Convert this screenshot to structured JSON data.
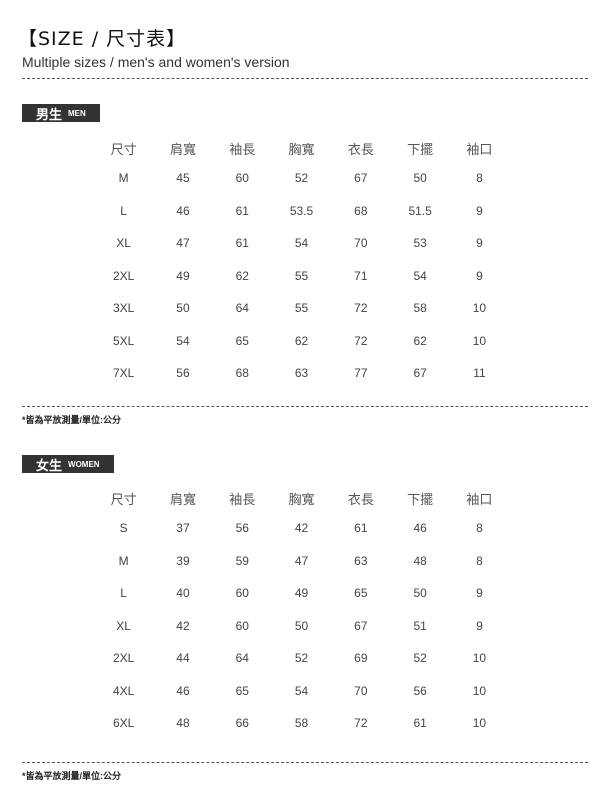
{
  "title": "【SIZE / 尺寸表】",
  "subtitle": "Multiple sizes / men's and women's version",
  "columns": [
    "尺寸",
    "肩寬",
    "袖長",
    "胸寬",
    "衣長",
    "下擺",
    "袖口"
  ],
  "men": {
    "label_zh": "男生",
    "label_en": "MEN",
    "rows": [
      [
        "M",
        "45",
        "60",
        "52",
        "67",
        "50",
        "8"
      ],
      [
        "L",
        "46",
        "61",
        "53.5",
        "68",
        "51.5",
        "9"
      ],
      [
        "XL",
        "47",
        "61",
        "54",
        "70",
        "53",
        "9"
      ],
      [
        "2XL",
        "49",
        "62",
        "55",
        "71",
        "54",
        "9"
      ],
      [
        "3XL",
        "50",
        "64",
        "55",
        "72",
        "58",
        "10"
      ],
      [
        "5XL",
        "54",
        "65",
        "62",
        "72",
        "62",
        "10"
      ],
      [
        "7XL",
        "56",
        "68",
        "63",
        "77",
        "67",
        "11"
      ]
    ],
    "note": "*皆為平放測量/單位:公分"
  },
  "women": {
    "label_zh": "女生",
    "label_en": "WOMEN",
    "rows": [
      [
        "S",
        "37",
        "56",
        "42",
        "61",
        "46",
        "8"
      ],
      [
        "M",
        "39",
        "59",
        "47",
        "63",
        "48",
        "8"
      ],
      [
        "L",
        "40",
        "60",
        "49",
        "65",
        "50",
        "9"
      ],
      [
        "XL",
        "42",
        "60",
        "50",
        "67",
        "51",
        "9"
      ],
      [
        "2XL",
        "44",
        "64",
        "52",
        "69",
        "52",
        "10"
      ],
      [
        "4XL",
        "46",
        "65",
        "54",
        "70",
        "56",
        "10"
      ],
      [
        "6XL",
        "48",
        "66",
        "58",
        "72",
        "61",
        "10"
      ]
    ],
    "note": "*皆為平放測量/單位:公分"
  }
}
